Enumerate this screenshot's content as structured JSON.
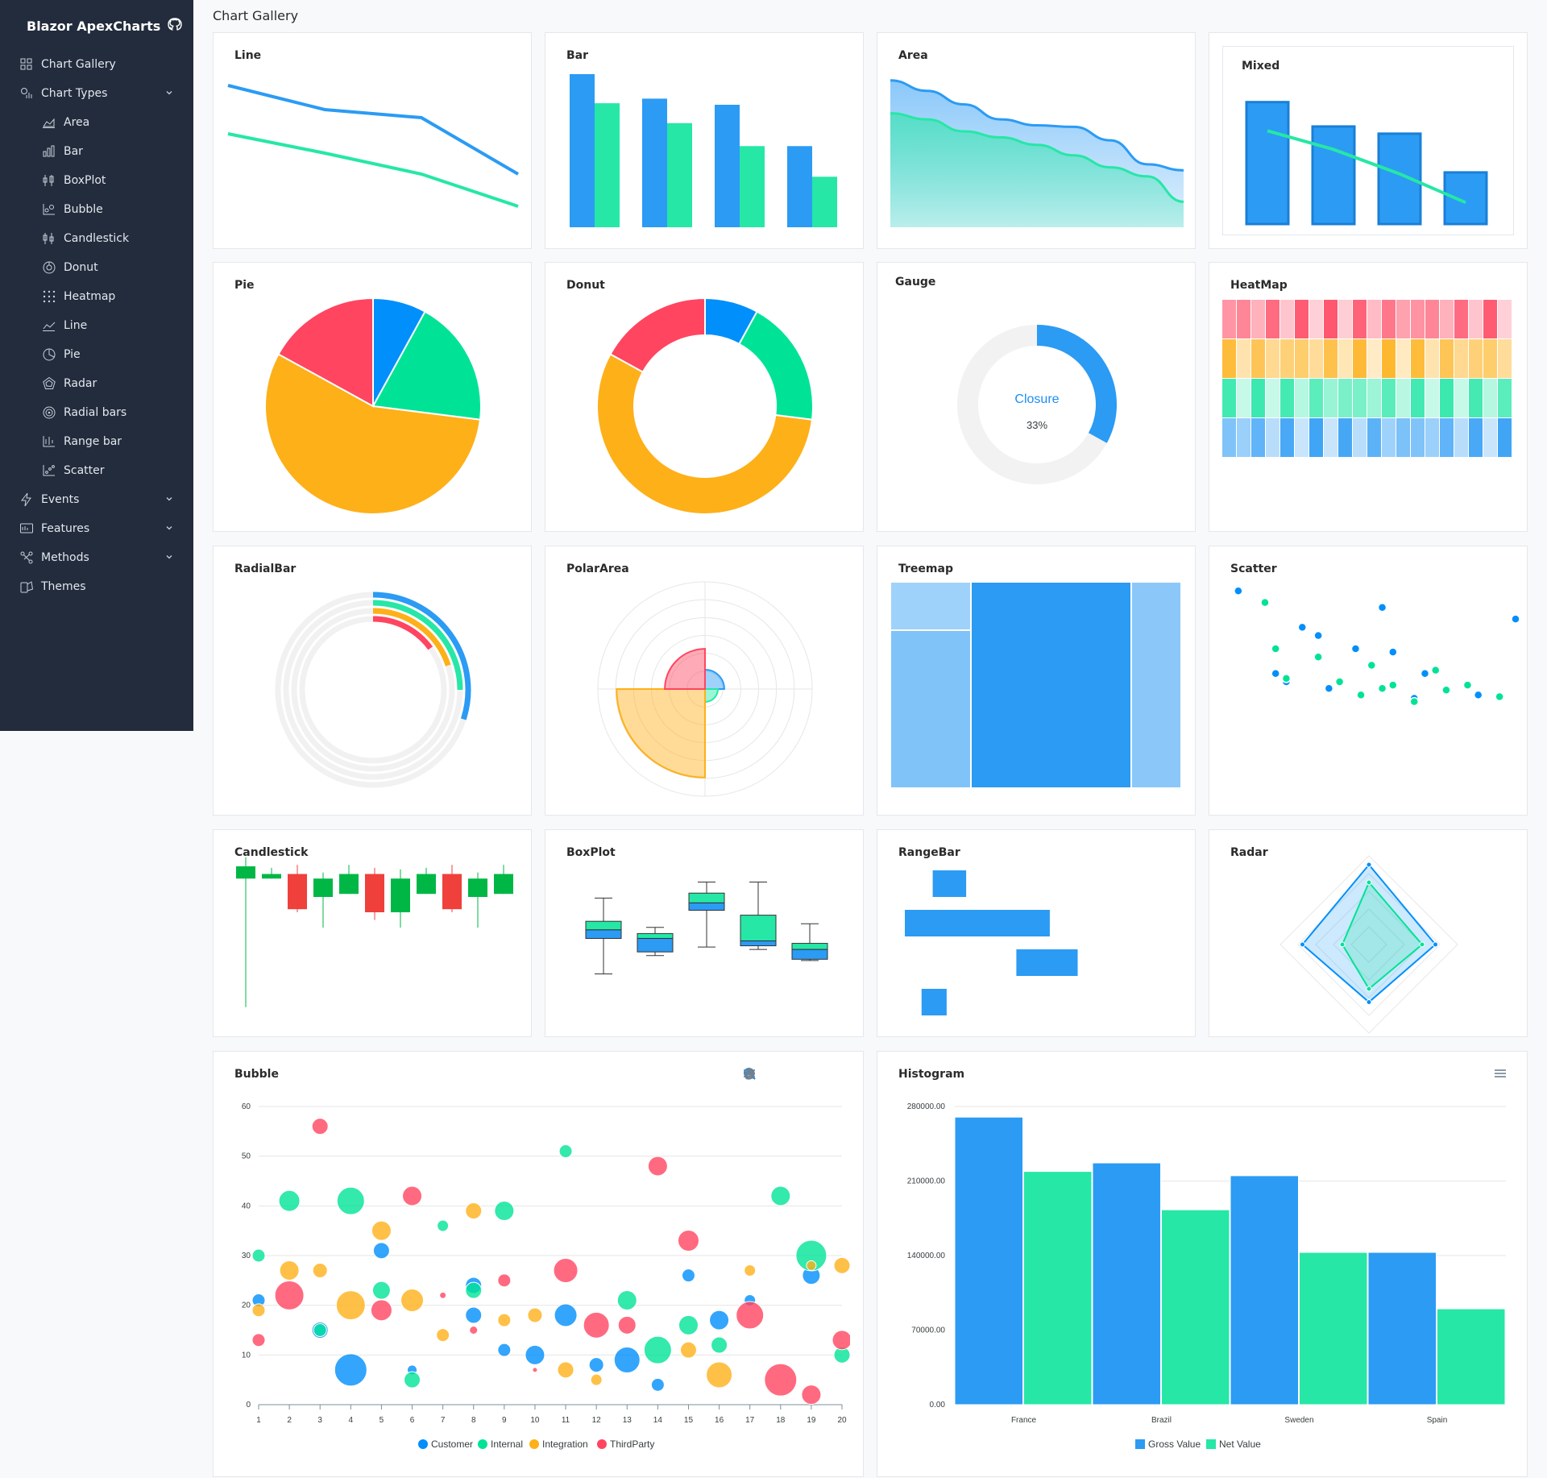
{
  "app": {
    "brand": "Blazor ApexCharts"
  },
  "page": {
    "title": "Chart Gallery"
  },
  "colors": {
    "blue": "#2b9bf4",
    "green": "#26e7a6",
    "orange": "#feb019",
    "red": "#ff4560",
    "sidebar": "#222c3c"
  },
  "sidebar": {
    "items": [
      {
        "label": "Chart Gallery",
        "icon": "grid-icon",
        "level": 0
      },
      {
        "label": "Chart Types",
        "icon": "chart-types-icon",
        "level": 0,
        "expanded": true
      },
      {
        "label": "Area",
        "icon": "area-chart-icon",
        "level": 1
      },
      {
        "label": "Bar",
        "icon": "bar-chart-icon",
        "level": 1
      },
      {
        "label": "BoxPlot",
        "icon": "boxplot-icon",
        "level": 1
      },
      {
        "label": "Bubble",
        "icon": "bubble-chart-icon",
        "level": 1
      },
      {
        "label": "Candlestick",
        "icon": "candlestick-icon",
        "level": 1
      },
      {
        "label": "Donut",
        "icon": "donut-icon",
        "level": 1
      },
      {
        "label": "Heatmap",
        "icon": "heatmap-icon",
        "level": 1
      },
      {
        "label": "Line",
        "icon": "line-chart-icon",
        "level": 1
      },
      {
        "label": "Pie",
        "icon": "pie-icon",
        "level": 1
      },
      {
        "label": "Radar",
        "icon": "radar-icon",
        "level": 1
      },
      {
        "label": "Radial bars",
        "icon": "radial-bars-icon",
        "level": 1
      },
      {
        "label": "Range bar",
        "icon": "range-bar-icon",
        "level": 1
      },
      {
        "label": "Scatter",
        "icon": "scatter-icon",
        "level": 1
      },
      {
        "label": "Events",
        "icon": "lightning-icon",
        "level": 0,
        "expanded": false
      },
      {
        "label": "Features",
        "icon": "features-icon",
        "level": 0,
        "expanded": false
      },
      {
        "label": "Methods",
        "icon": "methods-icon",
        "level": 0,
        "expanded": false
      },
      {
        "label": "Themes",
        "icon": "themes-icon",
        "level": 0
      }
    ]
  },
  "cards": {
    "line": "Line",
    "bar": "Bar",
    "area": "Area",
    "mixed": "Mixed",
    "pie": "Pie",
    "donut": "Donut",
    "gauge": "Gauge",
    "heatmap": "HeatMap",
    "radialbar": "RadialBar",
    "polararea": "PolarArea",
    "treemap": "Treemap",
    "scatter": "Scatter",
    "candlestick": "Candlestick",
    "boxplot": "BoxPlot",
    "rangebar": "RangeBar",
    "radar": "Radar",
    "bubble": "Bubble",
    "histogram": "Histogram"
  },
  "toolbar": {
    "bubble": [
      "zoom-in-icon",
      "zoom-out-icon",
      "magnifier-icon",
      "pan-hand-icon",
      "home-icon",
      "menu-icon"
    ],
    "histogram": [
      "menu-icon"
    ]
  },
  "chart_data": [
    {
      "id": "line",
      "type": "line",
      "series": [
        {
          "values": [
            90,
            75,
            70,
            35
          ]
        },
        {
          "values": [
            60,
            48,
            35,
            15
          ]
        }
      ],
      "ylim": [
        0,
        100
      ]
    },
    {
      "id": "bar",
      "type": "bar",
      "series": [
        {
          "values": [
            100,
            84,
            80,
            53
          ]
        },
        {
          "values": [
            81,
            68,
            53,
            33
          ]
        }
      ],
      "ylim": [
        0,
        100
      ]
    },
    {
      "id": "area",
      "type": "area",
      "series": [
        {
          "values": [
            98,
            91,
            82,
            72,
            68,
            67,
            58,
            42,
            38
          ]
        },
        {
          "values": [
            76,
            72,
            64,
            60,
            55,
            48,
            40,
            34,
            17
          ]
        }
      ],
      "ylim": [
        0,
        100
      ]
    },
    {
      "id": "mixed",
      "type": "bar",
      "bars": [
        85,
        68,
        63,
        36
      ],
      "line": [
        65,
        52,
        35,
        15
      ],
      "ylim": [
        0,
        100
      ]
    },
    {
      "id": "pie",
      "type": "pie",
      "values": [
        8,
        19,
        56,
        17
      ]
    },
    {
      "id": "donut",
      "type": "donut",
      "values": [
        8,
        19,
        56,
        17
      ]
    },
    {
      "id": "gauge",
      "type": "radialBar",
      "label": "Closure",
      "value": 33,
      "value_label": "33%"
    },
    {
      "id": "heatmap",
      "type": "heatmap",
      "rows": 4,
      "cols": 20
    },
    {
      "id": "radialbar",
      "type": "radialBar",
      "values": [
        30,
        25,
        20,
        15
      ]
    },
    {
      "id": "polararea",
      "type": "polarArea",
      "values": [
        12,
        8,
        55,
        25
      ]
    },
    {
      "id": "treemap",
      "type": "treemap",
      "values": [
        8,
        30,
        55,
        16
      ]
    },
    {
      "id": "scatter",
      "type": "scatter",
      "series": [
        {
          "values": [
            [
              3,
              95
            ],
            [
              30,
              85
            ],
            [
              55,
              78
            ],
            [
              15,
              73
            ],
            [
              18,
              68
            ],
            [
              25,
              60
            ],
            [
              32,
              58
            ],
            [
              38,
              45
            ],
            [
              10,
              45
            ],
            [
              12,
              40
            ],
            [
              20,
              36
            ],
            [
              36,
              30
            ],
            [
              48,
              32
            ]
          ]
        },
        {
          "values": [
            [
              8,
              88
            ],
            [
              10,
              60
            ],
            [
              18,
              55
            ],
            [
              28,
              50
            ],
            [
              40,
              47
            ],
            [
              32,
              38
            ],
            [
              42,
              35
            ],
            [
              12,
              42
            ],
            [
              22,
              40
            ],
            [
              30,
              36
            ],
            [
              46,
              38
            ],
            [
              26,
              32
            ],
            [
              36,
              28
            ],
            [
              52,
              31
            ]
          ]
        }
      ]
    },
    {
      "id": "candlestick",
      "type": "candlestick",
      "ohlc": [
        [
          2,
          92,
          100,
          8
        ],
        [
          3,
          95,
          92,
          96
        ],
        [
          4,
          72,
          95,
          70
        ],
        [
          5,
          80,
          92,
          60
        ],
        [
          6,
          95,
          82,
          96
        ],
        [
          7,
          70,
          95,
          65
        ],
        [
          8,
          70,
          92,
          60
        ],
        [
          9,
          95,
          82,
          96
        ],
        [
          10,
          72,
          95,
          70
        ],
        [
          11,
          80,
          92,
          60
        ],
        [
          12,
          95,
          82,
          96
        ]
      ]
    },
    {
      "id": "boxplot",
      "type": "boxPlot",
      "values": [
        [
          22,
          51,
          58,
          65,
          84
        ],
        [
          37,
          40,
          51,
          55,
          60
        ],
        [
          44,
          74,
          80,
          88,
          97
        ],
        [
          42,
          45,
          49,
          70,
          97
        ],
        [
          33,
          34,
          42,
          47,
          63
        ]
      ]
    },
    {
      "id": "rangebar",
      "type": "rangeBar",
      "values": [
        [
          10,
          22
        ],
        [
          0,
          52
        ],
        [
          40,
          62
        ],
        [
          6,
          15
        ]
      ]
    },
    {
      "id": "radar",
      "type": "radar",
      "series": [
        {
          "values": [
            90,
            75,
            65,
            75
          ]
        },
        {
          "values": [
            70,
            60,
            50,
            30
          ]
        }
      ]
    },
    {
      "id": "bubble",
      "type": "bubble",
      "x": [
        1,
        2,
        3,
        4,
        5,
        6,
        7,
        8,
        9,
        10,
        11,
        12,
        13,
        14,
        15,
        16,
        17,
        18,
        19,
        20
      ],
      "ylim": [
        0,
        60
      ],
      "yticks": [
        "0",
        "10",
        "20",
        "30",
        "40",
        "50",
        "60"
      ],
      "legend": [
        "Customer",
        "Internal",
        "Integration",
        "ThirdParty"
      ],
      "legend_position": "bottom",
      "series": [
        {
          "name": "Customer",
          "values": [
            [
              1,
              21,
              8
            ],
            [
              3,
              15,
              10
            ],
            [
              4,
              7,
              20
            ],
            [
              5,
              31,
              10
            ],
            [
              6,
              7,
              6
            ],
            [
              8,
              24,
              10
            ],
            [
              8,
              18,
              10
            ],
            [
              10,
              10,
              12
            ],
            [
              11,
              18,
              14
            ],
            [
              12,
              8,
              9
            ],
            [
              13,
              9,
              16
            ],
            [
              14,
              4,
              8
            ],
            [
              15,
              26,
              8
            ],
            [
              16,
              17,
              12
            ],
            [
              17,
              21,
              7
            ],
            [
              19,
              26,
              11
            ],
            [
              9,
              11,
              8
            ]
          ]
        },
        {
          "name": "Internal",
          "values": [
            [
              1,
              30,
              8
            ],
            [
              2,
              41,
              13
            ],
            [
              4,
              41,
              17
            ],
            [
              5,
              23,
              11
            ],
            [
              6,
              5,
              10
            ],
            [
              7,
              36,
              7
            ],
            [
              8,
              23,
              10
            ],
            [
              9,
              39,
              12
            ],
            [
              11,
              51,
              8
            ],
            [
              13,
              21,
              12
            ],
            [
              14,
              11,
              17
            ],
            [
              15,
              16,
              12
            ],
            [
              16,
              12,
              10
            ],
            [
              18,
              42,
              12
            ],
            [
              19,
              30,
              19
            ],
            [
              20,
              10,
              10
            ],
            [
              3,
              15,
              8
            ]
          ]
        },
        {
          "name": "Integration",
          "values": [
            [
              1,
              19,
              8
            ],
            [
              2,
              27,
              12
            ],
            [
              3,
              27,
              9
            ],
            [
              4,
              20,
              18
            ],
            [
              5,
              35,
              12
            ],
            [
              6,
              21,
              14
            ],
            [
              7,
              14,
              8
            ],
            [
              8,
              39,
              10
            ],
            [
              9,
              17,
              8
            ],
            [
              10,
              18,
              9
            ],
            [
              11,
              7,
              10
            ],
            [
              12,
              5,
              7
            ],
            [
              15,
              11,
              10
            ],
            [
              16,
              6,
              16
            ],
            [
              17,
              27,
              7
            ],
            [
              19,
              28,
              6
            ],
            [
              20,
              28,
              10
            ]
          ]
        },
        {
          "name": "ThirdParty",
          "values": [
            [
              1,
              13,
              8
            ],
            [
              2,
              22,
              18
            ],
            [
              3,
              56,
              10
            ],
            [
              5,
              19,
              13
            ],
            [
              6,
              42,
              12
            ],
            [
              7,
              22,
              4
            ],
            [
              8,
              15,
              5
            ],
            [
              9,
              25,
              8
            ],
            [
              10,
              7,
              3
            ],
            [
              11,
              27,
              15
            ],
            [
              12,
              16,
              16
            ],
            [
              13,
              16,
              11
            ],
            [
              14,
              48,
              12
            ],
            [
              15,
              33,
              13
            ],
            [
              17,
              18,
              17
            ],
            [
              18,
              5,
              20
            ],
            [
              19,
              2,
              12
            ],
            [
              20,
              13,
              12
            ]
          ]
        }
      ]
    },
    {
      "id": "histogram",
      "type": "bar",
      "categories": [
        "France",
        "Brazil",
        "Sweden",
        "Spain"
      ],
      "yticks": [
        "0.00",
        "70000.00",
        "140000.00",
        "210000.00",
        "280000.00"
      ],
      "ylim": [
        0,
        280000
      ],
      "legend": [
        "Gross Value",
        "Net Value"
      ],
      "legend_position": "bottom",
      "series": [
        {
          "name": "Gross Value",
          "values": [
            270000,
            227000,
            215000,
            143000
          ]
        },
        {
          "name": "Net Value",
          "values": [
            219000,
            183000,
            143000,
            90000
          ]
        }
      ]
    }
  ]
}
